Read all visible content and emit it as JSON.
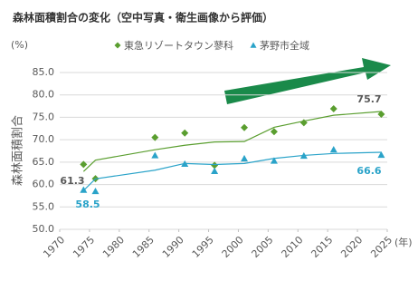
{
  "chart_data": {
    "type": "scatter",
    "title": "森林面積割合の変化（空中写真・衛生画像から評価）",
    "y_unit": "(%)",
    "x_unit": "(年)",
    "y_label": "森林面積割合",
    "xlim": [
      1970,
      2025
    ],
    "xticks": [
      1970,
      1975,
      1980,
      1985,
      1990,
      1995,
      2000,
      2005,
      2010,
      2015,
      2020,
      2025
    ],
    "ylim": [
      50,
      85
    ],
    "yticks": [
      {
        "value": 50,
        "label": "50.0"
      },
      {
        "value": 55,
        "label": "55.0"
      },
      {
        "value": 60,
        "label": "60.0"
      },
      {
        "value": 65,
        "label": "65.0"
      },
      {
        "value": 70,
        "label": "70.0"
      },
      {
        "value": 75,
        "label": "75.0"
      },
      {
        "value": 80,
        "label": "80.0"
      },
      {
        "value": 85,
        "label": "85.0"
      }
    ],
    "grid": true,
    "legend": "top",
    "series": [
      {
        "name": "東急リゾートタウン蓼科",
        "color": "#5a9e2f",
        "marker": "diamond",
        "x": [
          1974,
          1976,
          1986,
          1991,
          1996,
          2001,
          2006,
          2011,
          2016,
          2024
        ],
        "values": [
          64.5,
          61.3,
          70.5,
          71.5,
          64.3,
          72.7,
          71.8,
          73.8,
          76.9,
          75.7
        ]
      },
      {
        "name": "茅野市全域",
        "color": "#2aa3c9",
        "marker": "triangle",
        "x": [
          1974,
          1976,
          1986,
          1991,
          1996,
          2001,
          2006,
          2011,
          2016,
          2024
        ],
        "values": [
          58.8,
          58.5,
          66.5,
          64.6,
          63.0,
          65.8,
          65.3,
          66.4,
          67.8,
          66.6
        ]
      }
    ],
    "annotations": [
      "61.3",
      "58.5",
      "75.7",
      "66.6"
    ]
  }
}
